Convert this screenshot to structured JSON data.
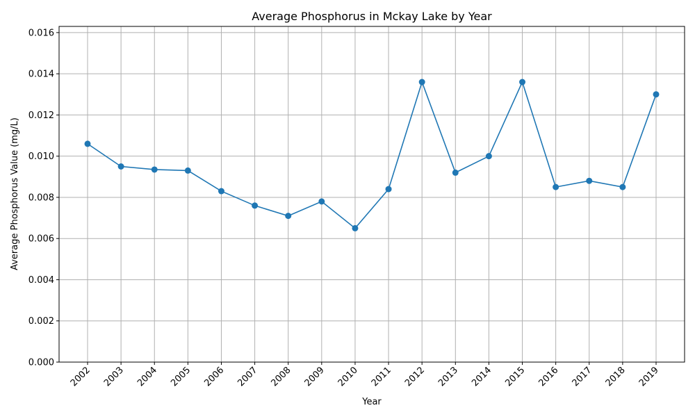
{
  "chart_data": {
    "type": "line",
    "title": "Average Phosphorus in Mckay Lake by Year",
    "xlabel": "Year",
    "ylabel": "Average Phosphorus Value (mg/L)",
    "categories": [
      "2002",
      "2003",
      "2004",
      "2005",
      "2006",
      "2007",
      "2008",
      "2009",
      "2010",
      "2011",
      "2012",
      "2013",
      "2014",
      "2015",
      "2016",
      "2017",
      "2018",
      "2019"
    ],
    "values": [
      0.0106,
      0.0095,
      0.00935,
      0.0093,
      0.0083,
      0.0076,
      0.0071,
      0.0078,
      0.0065,
      0.0084,
      0.0136,
      0.0092,
      0.01,
      0.0136,
      0.0085,
      0.0088,
      0.0085,
      0.013
    ],
    "ylim": [
      0,
      0.0163
    ],
    "yticks": [
      "0.000",
      "0.002",
      "0.004",
      "0.006",
      "0.008",
      "0.010",
      "0.012",
      "0.014",
      "0.016"
    ],
    "grid": true,
    "marker": "circle",
    "colors": {
      "series": "#1f77b4"
    }
  }
}
